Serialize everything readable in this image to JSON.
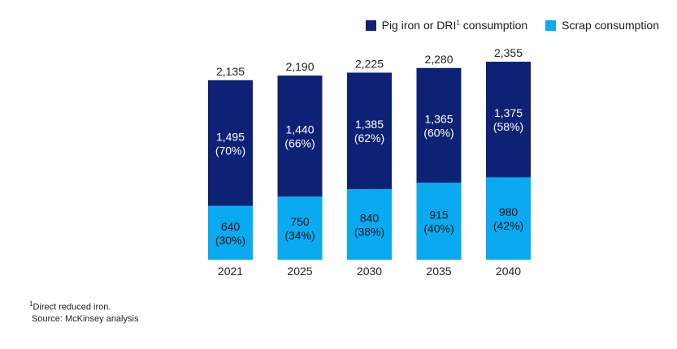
{
  "legend": {
    "pig_iron_label_main": "Pig iron or DRI",
    "pig_iron_label_sup": "1",
    "pig_iron_label_tail": " consumption",
    "scrap_label": "Scrap consumption"
  },
  "footnotes": {
    "note_marker": "1",
    "note_text": "Direct reduced iron.",
    "source": "Source: McKinsey analysis"
  },
  "colors": {
    "pig_iron": "#0e2275",
    "scrap": "#0aaaf0"
  },
  "chart_data": {
    "type": "bar",
    "stacked": true,
    "title": "",
    "xlabel": "",
    "ylabel": "",
    "categories": [
      "2021",
      "2025",
      "2030",
      "2035",
      "2040"
    ],
    "totals": [
      "2,135",
      "2,190",
      "2,225",
      "2,280",
      "2,355"
    ],
    "series": [
      {
        "name": "Scrap consumption",
        "values": [
          640,
          750,
          840,
          915,
          980
        ],
        "value_labels": [
          "640",
          "750",
          "840",
          "915",
          "980"
        ],
        "share_labels": [
          "(30%)",
          "(34%)",
          "(38%)",
          "(40%)",
          "(42%)"
        ]
      },
      {
        "name": "Pig iron or DRI consumption",
        "values": [
          1495,
          1440,
          1385,
          1365,
          1375
        ],
        "value_labels": [
          "1,495",
          "1,440",
          "1,385",
          "1,365",
          "1,375"
        ],
        "share_labels": [
          "(70%)",
          "(66%)",
          "(62%)",
          "(60%)",
          "(58%)"
        ]
      }
    ]
  }
}
